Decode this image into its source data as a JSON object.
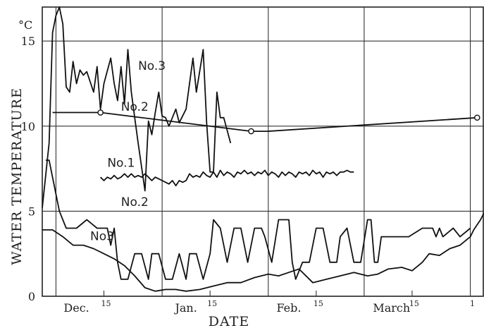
{
  "chart_data": {
    "type": "line",
    "title": "",
    "xlabel": "DATE",
    "ylabel": "WATER TEMPERATURE",
    "y_unit": "°C",
    "ylim": [
      0,
      17
    ],
    "xlim": [
      "Nov 27",
      "Apr 5"
    ],
    "grid": true,
    "y_ticks": [
      {
        "value": 0,
        "label": "0"
      },
      {
        "value": 5,
        "label": "5"
      },
      {
        "value": 10,
        "label": "10"
      },
      {
        "value": 15,
        "label": "15"
      }
    ],
    "x_ticks": [
      {
        "date": "Dec 1",
        "label": "",
        "major": true
      },
      {
        "date": "Dec 15",
        "label": "15",
        "major": false
      },
      {
        "date": "Jan 1",
        "label": "",
        "major": true
      },
      {
        "date": "Jan 15",
        "label": "15",
        "major": false
      },
      {
        "date": "Feb 1",
        "label": "",
        "major": true
      },
      {
        "date": "Feb 15",
        "label": "15",
        "major": false
      },
      {
        "date": "Mar 1",
        "label": "",
        "major": true
      },
      {
        "date": "Mar 15",
        "label": "15",
        "major": false
      },
      {
        "date": "Apr 1",
        "label": "1",
        "major": true
      }
    ],
    "month_labels": [
      {
        "date": "Dec 7",
        "label": "Dec."
      },
      {
        "date": "Jan 8",
        "label": "Jan."
      },
      {
        "date": "Feb 7",
        "label": "Feb."
      },
      {
        "date": "Mar 9",
        "label": "March"
      }
    ],
    "series": [
      {
        "name": "No.3",
        "label_date": "Dec 25",
        "label_y": 13.3,
        "points": [
          [
            "Nov 27",
            5.2
          ],
          [
            "Nov 29",
            9.0
          ],
          [
            "Nov 30",
            15.5
          ],
          [
            "Dec 1",
            16.5
          ],
          [
            "Dec 2",
            17.0
          ],
          [
            "Dec 3",
            16.0
          ],
          [
            "Dec 4",
            12.3
          ],
          [
            "Dec 5",
            12.0
          ],
          [
            "Dec 6",
            13.8
          ],
          [
            "Dec 7",
            12.5
          ],
          [
            "Dec 8",
            13.3
          ],
          [
            "Dec 9",
            13.0
          ],
          [
            "Dec 10",
            13.2
          ],
          [
            "Dec 12",
            12.0
          ],
          [
            "Dec 13",
            13.5
          ],
          [
            "Dec 14",
            11.0
          ],
          [
            "Dec 15",
            12.5
          ],
          [
            "Dec 17",
            14.0
          ],
          [
            "Dec 18",
            12.5
          ],
          [
            "Dec 19",
            11.5
          ],
          [
            "Dec 20",
            13.5
          ],
          [
            "Dec 21",
            11.3
          ],
          [
            "Dec 22",
            14.5
          ],
          [
            "Dec 23",
            12.0
          ],
          [
            "Dec 24",
            10.5
          ],
          [
            "Dec 25",
            9.0
          ],
          [
            "Dec 27",
            6.2
          ],
          [
            "Dec 28",
            10.3
          ],
          [
            "Dec 29",
            9.5
          ],
          [
            "Dec 30",
            10.8
          ],
          [
            "Dec 31",
            12.0
          ],
          [
            "Jan 1",
            10.6
          ],
          [
            "Jan 2",
            10.5
          ],
          [
            "Jan 3",
            10.0
          ],
          [
            "Jan 5",
            11.0
          ],
          [
            "Jan 6",
            10.2
          ],
          [
            "Jan 8",
            11.0
          ],
          [
            "Jan 10",
            14.0
          ],
          [
            "Jan 11",
            12.0
          ],
          [
            "Jan 13",
            14.5
          ],
          [
            "Jan 14",
            10.2
          ],
          [
            "Jan 15",
            7.3
          ],
          [
            "Jan 16",
            7.3
          ],
          [
            "Jan 17",
            12.0
          ],
          [
            "Jan 18",
            10.5
          ],
          [
            "Jan 19",
            10.5
          ],
          [
            "Jan 21",
            9.0
          ]
        ]
      },
      {
        "name": "No.2",
        "label_date": "Dec 20",
        "label_y": 10.9,
        "markers": [
          "Dec 14",
          "Jan 27",
          "Apr 3"
        ],
        "points": [
          [
            "Nov 30",
            10.8
          ],
          [
            "Dec 14",
            10.8
          ],
          [
            "Jan 27",
            9.7
          ],
          [
            "Feb 1",
            9.7
          ],
          [
            "Apr 3",
            10.5
          ]
        ]
      },
      {
        "name": "No.1",
        "label_date": "Dec 16",
        "label_y": 7.6,
        "points": [
          [
            "Dec 14",
            7.0
          ],
          [
            "Dec 15",
            6.8
          ],
          [
            "Dec 16",
            7.0
          ],
          [
            "Dec 17",
            6.9
          ],
          [
            "Dec 18",
            7.1
          ],
          [
            "Dec 19",
            6.9
          ],
          [
            "Dec 20",
            7.0
          ],
          [
            "Dec 21",
            7.2
          ],
          [
            "Dec 22",
            7.0
          ],
          [
            "Dec 23",
            7.2
          ],
          [
            "Dec 24",
            7.0
          ],
          [
            "Dec 25",
            7.1
          ],
          [
            "Dec 26",
            7.0
          ],
          [
            "Dec 27",
            7.2
          ],
          [
            "Dec 28",
            7.0
          ],
          [
            "Dec 29",
            6.8
          ],
          [
            "Dec 30",
            7.0
          ],
          [
            "Dec 31",
            6.9
          ],
          [
            "Jan 1",
            6.8
          ],
          [
            "Jan 2",
            6.7
          ],
          [
            "Jan 3",
            6.6
          ],
          [
            "Jan 4",
            6.8
          ],
          [
            "Jan 5",
            6.5
          ],
          [
            "Jan 6",
            6.8
          ],
          [
            "Jan 7",
            6.7
          ],
          [
            "Jan 8",
            6.8
          ],
          [
            "Jan 9",
            7.2
          ],
          [
            "Jan 10",
            7.0
          ],
          [
            "Jan 11",
            7.1
          ],
          [
            "Jan 12",
            7.0
          ],
          [
            "Jan 13",
            7.3
          ],
          [
            "Jan 14",
            7.1
          ],
          [
            "Jan 15",
            7.0
          ],
          [
            "Jan 16",
            7.3
          ],
          [
            "Jan 17",
            7.0
          ],
          [
            "Jan 18",
            7.4
          ],
          [
            "Jan 19",
            7.1
          ],
          [
            "Jan 20",
            7.3
          ],
          [
            "Jan 21",
            7.2
          ],
          [
            "Jan 22",
            7.0
          ],
          [
            "Jan 23",
            7.3
          ],
          [
            "Jan 24",
            7.2
          ],
          [
            "Jan 25",
            7.4
          ],
          [
            "Jan 26",
            7.2
          ],
          [
            "Jan 27",
            7.3
          ],
          [
            "Jan 28",
            7.1
          ],
          [
            "Jan 29",
            7.3
          ],
          [
            "Jan 30",
            7.2
          ],
          [
            "Jan 31",
            7.4
          ],
          [
            "Feb 1",
            7.1
          ],
          [
            "Feb 2",
            7.3
          ],
          [
            "Feb 3",
            7.2
          ],
          [
            "Feb 4",
            7.0
          ],
          [
            "Feb 5",
            7.3
          ],
          [
            "Feb 6",
            7.1
          ],
          [
            "Feb 7",
            7.3
          ],
          [
            "Feb 8",
            7.2
          ],
          [
            "Feb 9",
            7.0
          ],
          [
            "Feb 10",
            7.3
          ],
          [
            "Feb 11",
            7.2
          ],
          [
            "Feb 12",
            7.3
          ],
          [
            "Feb 13",
            7.1
          ],
          [
            "Feb 14",
            7.4
          ],
          [
            "Feb 15",
            7.2
          ],
          [
            "Feb 16",
            7.3
          ],
          [
            "Feb 17",
            7.0
          ],
          [
            "Feb 18",
            7.3
          ],
          [
            "Feb 19",
            7.2
          ],
          [
            "Feb 20",
            7.3
          ],
          [
            "Feb 21",
            7.1
          ],
          [
            "Feb 22",
            7.3
          ],
          [
            "Feb 23",
            7.3
          ],
          [
            "Feb 24",
            7.4
          ],
          [
            "Feb 25",
            7.3
          ],
          [
            "Feb 26",
            7.3
          ]
        ]
      },
      {
        "name": "No.2",
        "label_date": "Dec 20",
        "label_y": 5.3,
        "points": [
          [
            "Nov 28",
            8.0
          ],
          [
            "Nov 29",
            8.0
          ],
          [
            "Dec 2",
            5.0
          ],
          [
            "Dec 4",
            4.0
          ],
          [
            "Dec 7",
            4.0
          ],
          [
            "Dec 10",
            4.5
          ],
          [
            "Dec 13",
            4.0
          ],
          [
            "Dec 16",
            4.0
          ],
          [
            "Dec 17",
            3.0
          ],
          [
            "Dec 18",
            4.0
          ],
          [
            "Dec 19",
            2.0
          ],
          [
            "Dec 20",
            1.0
          ],
          [
            "Dec 22",
            1.0
          ],
          [
            "Dec 24",
            2.5
          ],
          [
            "Dec 26",
            2.5
          ],
          [
            "Dec 28",
            1.0
          ],
          [
            "Dec 29",
            2.5
          ],
          [
            "Dec 31",
            2.5
          ],
          [
            "Jan 2",
            1.0
          ],
          [
            "Jan 4",
            1.0
          ],
          [
            "Jan 6",
            2.5
          ],
          [
            "Jan 8",
            1.0
          ],
          [
            "Jan 9",
            2.5
          ],
          [
            "Jan 11",
            2.5
          ],
          [
            "Jan 13",
            1.0
          ],
          [
            "Jan 15",
            2.5
          ],
          [
            "Jan 16",
            4.5
          ],
          [
            "Jan 18",
            4.0
          ],
          [
            "Jan 20",
            2.0
          ],
          [
            "Jan 22",
            4.0
          ],
          [
            "Jan 24",
            4.0
          ],
          [
            "Jan 26",
            2.0
          ],
          [
            "Jan 28",
            4.0
          ],
          [
            "Jan 30",
            4.0
          ],
          [
            "Jan 31",
            3.5
          ],
          [
            "Feb 2",
            2.0
          ],
          [
            "Feb 4",
            4.5
          ],
          [
            "Feb 7",
            4.5
          ],
          [
            "Feb 8",
            2.0
          ],
          [
            "Feb 9",
            1.0
          ],
          [
            "Feb 11",
            2.0
          ],
          [
            "Feb 13",
            2.0
          ],
          [
            "Feb 15",
            4.0
          ],
          [
            "Feb 17",
            4.0
          ],
          [
            "Feb 19",
            2.0
          ],
          [
            "Feb 21",
            2.0
          ],
          [
            "Feb 22",
            3.5
          ],
          [
            "Feb 24",
            4.0
          ],
          [
            "Feb 26",
            2.0
          ],
          [
            "Feb 28",
            2.0
          ],
          [
            "Mar 2",
            4.5
          ],
          [
            "Mar 3",
            4.5
          ],
          [
            "Mar 4",
            2.0
          ],
          [
            "Mar 5",
            2.0
          ],
          [
            "Mar 6",
            3.5
          ],
          [
            "Mar 10",
            3.5
          ],
          [
            "Mar 14",
            3.5
          ],
          [
            "Mar 18",
            4.0
          ],
          [
            "Mar 21",
            4.0
          ],
          [
            "Mar 22",
            3.5
          ],
          [
            "Mar 23",
            4.0
          ],
          [
            "Mar 24",
            3.5
          ],
          [
            "Mar 27",
            4.0
          ],
          [
            "Mar 29",
            3.5
          ],
          [
            "Apr 1",
            4.0
          ]
        ]
      },
      {
        "name": "No3",
        "label_date": "Dec 11",
        "label_y": 3.3,
        "points": [
          [
            "Nov 27",
            3.9
          ],
          [
            "Nov 30",
            3.9
          ],
          [
            "Dec 3",
            3.5
          ],
          [
            "Dec 6",
            3.0
          ],
          [
            "Dec 9",
            3.0
          ],
          [
            "Dec 12",
            2.8
          ],
          [
            "Dec 15",
            2.5
          ],
          [
            "Dec 18",
            2.2
          ],
          [
            "Dec 21",
            1.8
          ],
          [
            "Dec 24",
            1.2
          ],
          [
            "Dec 27",
            0.5
          ],
          [
            "Dec 30",
            0.3
          ],
          [
            "Jan 2",
            0.4
          ],
          [
            "Jan 5",
            0.4
          ],
          [
            "Jan 8",
            0.3
          ],
          [
            "Jan 12",
            0.4
          ],
          [
            "Jan 16",
            0.6
          ],
          [
            "Jan 20",
            0.8
          ],
          [
            "Jan 24",
            0.8
          ],
          [
            "Jan 28",
            1.1
          ],
          [
            "Feb 1",
            1.3
          ],
          [
            "Feb 4",
            1.2
          ],
          [
            "Feb 7",
            1.4
          ],
          [
            "Feb 10",
            1.6
          ],
          [
            "Feb 14",
            0.8
          ],
          [
            "Feb 18",
            1.0
          ],
          [
            "Feb 22",
            1.2
          ],
          [
            "Feb 26",
            1.4
          ],
          [
            "Mar 2",
            1.2
          ],
          [
            "Mar 5",
            1.3
          ],
          [
            "Mar 8",
            1.6
          ],
          [
            "Mar 12",
            1.7
          ],
          [
            "Mar 15",
            1.5
          ],
          [
            "Mar 18",
            2.0
          ],
          [
            "Mar 20",
            2.5
          ],
          [
            "Mar 23",
            2.4
          ],
          [
            "Mar 26",
            2.8
          ],
          [
            "Mar 29",
            3.0
          ],
          [
            "Apr 1",
            3.5
          ],
          [
            "Apr 2",
            3.9
          ],
          [
            "Apr 4",
            4.5
          ],
          [
            "Apr 5",
            4.9
          ]
        ]
      }
    ]
  }
}
